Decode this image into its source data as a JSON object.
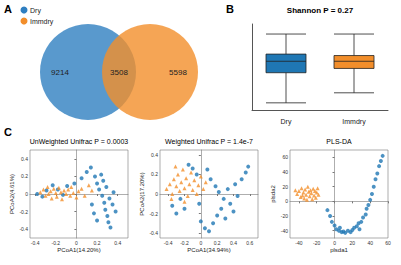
{
  "chart_data": [
    {
      "type": "venn",
      "panel": "A",
      "legend": "top-left",
      "series": [
        {
          "name": "Dry",
          "color": "#2f7fc1"
        },
        {
          "name": "Immdry",
          "color": "#f28e2b"
        }
      ],
      "values": [
        9214,
        3508,
        5598
      ]
    },
    {
      "type": "boxplot",
      "panel": "B",
      "title": "Shannon P = 0.27",
      "categories": [
        "Dry",
        "Immdry"
      ],
      "colors": [
        "#1f77b4",
        "#f28e2b"
      ],
      "values": [
        [
          1.0,
          3.1,
          3.9,
          4.4,
          5.8
        ],
        [
          1.7,
          3.4,
          3.9,
          4.3,
          5.8
        ]
      ],
      "ylim": [
        0.5,
        6.5
      ],
      "tick_labels": "x",
      "grid": false
    },
    {
      "type": "scatter",
      "panel": "C",
      "title": "UnWeighted Unifrac P = 0.0003",
      "x_label": "PCoA1(14.20%)",
      "y_label": "PCoA2(4.61%)",
      "xlim": [
        -0.45,
        0.5
      ],
      "ylim": [
        -0.5,
        0.5
      ],
      "xticks": [
        -0.4,
        -0.2,
        0,
        0.2,
        0.4
      ],
      "yticks": [
        -0.4,
        -0.2,
        0,
        0.2,
        0.4
      ],
      "grid": false,
      "series": [
        {
          "name": "Dry",
          "color": "#1f77b4",
          "marker": "circle",
          "x": [
            -0.38,
            -0.33,
            -0.29,
            -0.23,
            -0.18,
            -0.13,
            -0.09,
            -0.02,
            0.05,
            0.1,
            0.14,
            0.18,
            0.2,
            0.22,
            0.25,
            0.27,
            0.28,
            0.3,
            0.31,
            0.33,
            0.24,
            0.26,
            0.29,
            0.32,
            0.35,
            0.36,
            0.38,
            0.2,
            0.17,
            0.15
          ],
          "y": [
            0.0,
            -0.03,
            0.04,
            0.1,
            0.05,
            -0.01,
            0.09,
            0.12,
            0.18,
            0.25,
            0.3,
            0.2,
            0.12,
            0.05,
            -0.02,
            -0.1,
            -0.18,
            -0.25,
            -0.32,
            -0.38,
            0.22,
            0.15,
            0.08,
            -0.05,
            -0.12,
            0.02,
            -0.2,
            -0.3,
            -0.22,
            -0.12
          ]
        },
        {
          "name": "Immdry",
          "color": "#f28e2b",
          "marker": "triangle",
          "x": [
            -0.35,
            -0.32,
            -0.3,
            -0.28,
            -0.27,
            -0.25,
            -0.24,
            -0.22,
            -0.2,
            -0.19,
            -0.17,
            -0.15,
            -0.14,
            -0.12,
            -0.1,
            -0.08,
            -0.06,
            -0.05,
            -0.03,
            0.0,
            0.02,
            0.05,
            0.08,
            0.12,
            0.15
          ],
          "y": [
            0.02,
            0.05,
            -0.02,
            0.08,
            0.0,
            0.03,
            -0.05,
            0.06,
            0.01,
            -0.03,
            0.07,
            0.02,
            -0.06,
            0.04,
            0.0,
            0.05,
            -0.02,
            0.08,
            0.01,
            -0.04,
            0.03,
            0.06,
            -0.02,
            0.1,
            0.04
          ]
        }
      ]
    },
    {
      "type": "scatter",
      "title": "Weighted Unifrac P = 1.4e-7",
      "x_label": "PCoA1(34.94%)",
      "y_label": "PCoA2(17.20%)",
      "xlim": [
        -0.5,
        0.7
      ],
      "ylim": [
        -0.45,
        0.45
      ],
      "xticks": [
        -0.4,
        -0.2,
        0,
        0.2,
        0.4,
        0.6
      ],
      "yticks": [
        -0.4,
        -0.2,
        0,
        0.2,
        0.4
      ],
      "grid": false,
      "series": [
        {
          "name": "Dry",
          "color": "#1f77b4",
          "marker": "circle",
          "x": [
            -0.35,
            -0.3,
            -0.25,
            -0.2,
            -0.15,
            -0.1,
            -0.05,
            0.0,
            0.05,
            0.1,
            0.12,
            0.15,
            0.18,
            0.2,
            0.22,
            0.25,
            0.28,
            0.3,
            0.33,
            0.36,
            0.4,
            0.42,
            0.45,
            0.5,
            0.55,
            0.58,
            0.08,
            -0.02
          ],
          "y": [
            -0.12,
            -0.2,
            -0.05,
            -0.15,
            0.3,
            0.26,
            0.2,
            -0.28,
            -0.35,
            -0.38,
            0.15,
            -0.3,
            0.08,
            -0.22,
            0.02,
            -0.15,
            -0.05,
            -0.25,
            0.05,
            -0.1,
            -0.18,
            0.1,
            -0.02,
            0.15,
            0.22,
            0.28,
            0.25,
            -0.1
          ]
        },
        {
          "name": "Immdry",
          "color": "#f28e2b",
          "marker": "triangle",
          "x": [
            -0.42,
            -0.38,
            -0.35,
            -0.33,
            -0.3,
            -0.28,
            -0.26,
            -0.24,
            -0.22,
            -0.2,
            -0.18,
            -0.16,
            -0.14,
            -0.12,
            -0.1,
            -0.08,
            -0.05,
            -0.03,
            0.0,
            0.03,
            -0.36,
            -0.31,
            -0.2,
            0.06
          ],
          "y": [
            0.05,
            0.1,
            0.0,
            0.15,
            0.08,
            0.2,
            0.03,
            0.12,
            0.25,
            0.06,
            0.16,
            -0.02,
            0.1,
            0.22,
            0.04,
            0.14,
            0.0,
            0.09,
            0.18,
            0.05,
            -0.05,
            0.28,
            -0.08,
            0.12
          ]
        }
      ]
    },
    {
      "type": "scatter",
      "title": "PLS-DA",
      "x_label": "plsda1",
      "y_label": "plsda2",
      "xlim": [
        -50,
        60
      ],
      "ylim": [
        -50,
        70
      ],
      "xticks": [
        -40,
        -20,
        0,
        20,
        40,
        60
      ],
      "yticks": [
        -40,
        -20,
        0,
        20,
        40,
        60
      ],
      "grid": false,
      "series": [
        {
          "name": "Dry",
          "color": "#1f77b4",
          "marker": "circle",
          "x": [
            -5,
            -3,
            0,
            2,
            5,
            8,
            10,
            12,
            15,
            18,
            20,
            22,
            25,
            27,
            30,
            32,
            35,
            36,
            38,
            40,
            42,
            44,
            46,
            48,
            50,
            52,
            54,
            -8,
            6,
            28
          ],
          "y": [
            -20,
            -28,
            -33,
            -38,
            -40,
            -42,
            -41,
            -43,
            -40,
            -42,
            -39,
            -36,
            -34,
            -30,
            -28,
            -22,
            -18,
            -10,
            -5,
            2,
            10,
            20,
            30,
            38,
            48,
            55,
            62,
            -12,
            -36,
            -38
          ]
        },
        {
          "name": "Immdry",
          "color": "#f28e2b",
          "marker": "triangle",
          "x": [
            -42,
            -40,
            -38,
            -37,
            -35,
            -34,
            -33,
            -32,
            -30,
            -29,
            -28,
            -27,
            -26,
            -25,
            -24,
            -23,
            -22,
            -21,
            -20,
            -19,
            -36,
            -31,
            -44,
            -18
          ],
          "y": [
            10,
            14,
            6,
            18,
            12,
            4,
            16,
            9,
            20,
            13,
            7,
            15,
            11,
            3,
            17,
            8,
            14,
            5,
            12,
            18,
            8,
            2,
            15,
            9
          ]
        }
      ]
    }
  ]
}
